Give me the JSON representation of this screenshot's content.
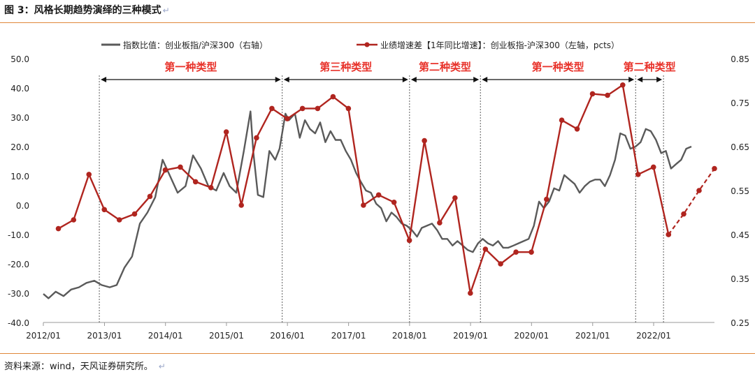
{
  "figure": {
    "title": "图 3：风格长期趋势演绎的三种模式",
    "return_mark": "↵",
    "source": "资料来源：wind，天风证券研究所。"
  },
  "colors": {
    "index_line": "#5a5a5a",
    "growth_line": "#b0251f",
    "annotation": "#e8322a",
    "rule": "#e0873a"
  },
  "chart_data": {
    "type": "line",
    "legend": {
      "position": "top",
      "entries": [
        {
          "name": "指数比值：创业板指/沪深300（右轴）",
          "series": "index"
        },
        {
          "name": "业绩增速差【1年同比增速】：创业板指-沪深300（左轴，pcts）",
          "series": "growth"
        }
      ]
    },
    "x_axis": {
      "type": "date",
      "range": [
        "2012-01-01",
        "2022-12-31"
      ],
      "tick_labels": [
        "2012/01",
        "2013/01",
        "2014/01",
        "2015/01",
        "2016/01",
        "2017/01",
        "2018/01",
        "2019/01",
        "2020/01",
        "2021/01",
        "2022/01"
      ],
      "tick_dates": [
        "2012-01-01",
        "2013-01-01",
        "2014-01-01",
        "2015-01-01",
        "2016-01-01",
        "2017-01-01",
        "2018-01-01",
        "2019-01-01",
        "2020-01-01",
        "2021-01-01",
        "2022-01-01"
      ]
    },
    "y_left": {
      "range": [
        -40,
        50
      ],
      "ticks": [
        "50.0",
        "40.0",
        "30.0",
        "20.0",
        "10.0",
        "0.0",
        "-10.0",
        "-20.0",
        "-30.0",
        "-40.0"
      ],
      "tick_values": [
        50,
        40,
        30,
        20,
        10,
        0,
        -10,
        -20,
        -30,
        -40
      ]
    },
    "y_right": {
      "range": [
        0.25,
        0.85
      ],
      "ticks": [
        "0.85",
        "0.75",
        "0.65",
        "0.55",
        "0.45",
        "0.35",
        "0.25"
      ],
      "tick_values": [
        0.85,
        0.75,
        0.65,
        0.55,
        0.45,
        0.35,
        0.25
      ]
    },
    "grid": false,
    "series": [
      {
        "id": "index",
        "axis": "right",
        "style": "line",
        "x": [
          "2012-01-01",
          "2012-02-01",
          "2012-03-15",
          "2012-05-01",
          "2012-06-15",
          "2012-08-01",
          "2012-09-15",
          "2012-11-01",
          "2012-12-15",
          "2013-02-01",
          "2013-03-15",
          "2013-05-01",
          "2013-06-15",
          "2013-08-01",
          "2013-09-15",
          "2013-11-01",
          "2013-12-15",
          "2014-02-01",
          "2014-03-15",
          "2014-05-01",
          "2014-06-15",
          "2014-08-01",
          "2014-09-15",
          "2014-11-01",
          "2014-12-15",
          "2015-01-20",
          "2015-03-01",
          "2015-04-15",
          "2015-05-25",
          "2015-06-10",
          "2015-07-08",
          "2015-08-10",
          "2015-09-15",
          "2015-10-20",
          "2015-11-15",
          "2015-12-20",
          "2016-01-10",
          "2016-02-15",
          "2016-03-15",
          "2016-04-15",
          "2016-05-15",
          "2016-06-15",
          "2016-07-15",
          "2016-08-15",
          "2016-09-15",
          "2016-10-15",
          "2016-11-15",
          "2016-12-15",
          "2017-01-15",
          "2017-02-15",
          "2017-03-15",
          "2017-04-15",
          "2017-05-15",
          "2017-06-15",
          "2017-07-15",
          "2017-08-15",
          "2017-09-15",
          "2017-10-15",
          "2017-11-15",
          "2017-12-15",
          "2018-01-15",
          "2018-02-15",
          "2018-03-15",
          "2018-04-15",
          "2018-05-15",
          "2018-06-15",
          "2018-07-15",
          "2018-08-15",
          "2018-09-15",
          "2018-10-15",
          "2018-11-15",
          "2018-12-15",
          "2019-01-15",
          "2019-02-15",
          "2019-03-15",
          "2019-04-15",
          "2019-05-15",
          "2019-06-15",
          "2019-07-15",
          "2019-08-15",
          "2019-09-15",
          "2019-10-15",
          "2019-11-15",
          "2019-12-15",
          "2020-01-15",
          "2020-02-15",
          "2020-03-15",
          "2020-04-15",
          "2020-05-15",
          "2020-06-15",
          "2020-07-15",
          "2020-08-15",
          "2020-09-15",
          "2020-10-15",
          "2020-11-15",
          "2020-12-15",
          "2021-01-15",
          "2021-02-15",
          "2021-03-15",
          "2021-04-15",
          "2021-05-15",
          "2021-06-15",
          "2021-07-15",
          "2021-08-15",
          "2021-09-15",
          "2021-10-15",
          "2021-11-15",
          "2021-12-15",
          "2022-01-15",
          "2022-02-15",
          "2022-03-15",
          "2022-04-15",
          "2022-05-15",
          "2022-06-15",
          "2022-07-15",
          "2022-08-15"
        ],
        "values": [
          0.315,
          0.305,
          0.32,
          0.31,
          0.325,
          0.33,
          0.34,
          0.345,
          0.335,
          0.33,
          0.335,
          0.375,
          0.4,
          0.475,
          0.5,
          0.535,
          0.62,
          0.58,
          0.545,
          0.56,
          0.63,
          0.6,
          0.56,
          0.55,
          0.59,
          0.56,
          0.545,
          0.64,
          0.73,
          0.64,
          0.54,
          0.535,
          0.64,
          0.62,
          0.645,
          0.725,
          0.71,
          0.725,
          0.67,
          0.71,
          0.69,
          0.68,
          0.705,
          0.66,
          0.685,
          0.665,
          0.665,
          0.64,
          0.62,
          0.59,
          0.57,
          0.55,
          0.545,
          0.52,
          0.51,
          0.48,
          0.5,
          0.49,
          0.475,
          0.47,
          0.46,
          0.445,
          0.465,
          0.47,
          0.475,
          0.46,
          0.44,
          0.44,
          0.425,
          0.435,
          0.425,
          0.415,
          0.41,
          0.43,
          0.44,
          0.43,
          0.425,
          0.435,
          0.42,
          0.42,
          0.425,
          0.43,
          0.435,
          0.44,
          0.47,
          0.525,
          0.51,
          0.525,
          0.555,
          0.55,
          0.585,
          0.575,
          0.565,
          0.545,
          0.56,
          0.57,
          0.575,
          0.575,
          0.56,
          0.585,
          0.62,
          0.68,
          0.675,
          0.645,
          0.65,
          0.66,
          0.69,
          0.685,
          0.665,
          0.635,
          0.64,
          0.6,
          0.61,
          0.62,
          0.645,
          0.65
        ]
      },
      {
        "id": "growth",
        "axis": "left",
        "style": "line-markers",
        "x": [
          "2012-03-31",
          "2012-06-30",
          "2012-09-30",
          "2012-12-31",
          "2013-03-31",
          "2013-06-30",
          "2013-09-30",
          "2013-12-31",
          "2014-03-31",
          "2014-06-30",
          "2014-09-30",
          "2014-12-31",
          "2015-03-31",
          "2015-06-30",
          "2015-09-30",
          "2015-12-31",
          "2016-03-31",
          "2016-06-30",
          "2016-09-30",
          "2016-12-31",
          "2017-03-31",
          "2017-06-30",
          "2017-09-30",
          "2017-12-31",
          "2018-03-31",
          "2018-06-30",
          "2018-09-30",
          "2018-12-31",
          "2019-03-31",
          "2019-06-30",
          "2019-09-30",
          "2019-12-31",
          "2020-03-31",
          "2020-06-30",
          "2020-09-30",
          "2020-12-31",
          "2021-03-31",
          "2021-06-30",
          "2021-09-30",
          "2021-12-31",
          "2022-03-31"
        ],
        "values": [
          -8.0,
          -5.0,
          10.5,
          -1.5,
          -5.0,
          -3.0,
          3.0,
          12.0,
          13.0,
          8.0,
          6.0,
          25.0,
          0.0,
          23.0,
          33.0,
          29.5,
          33.0,
          33.0,
          37.0,
          33.0,
          0.0,
          3.5,
          1.0,
          -12.0,
          22.0,
          -6.0,
          2.5,
          -30.0,
          -15.0,
          -20.0,
          -16.0,
          -16.0,
          2.0,
          29.0,
          26.0,
          38.0,
          37.5,
          41.0,
          10.5,
          13.0,
          -10.0
        ]
      },
      {
        "id": "growth_forecast",
        "axis": "left",
        "style": "dashed-markers",
        "x": [
          "2022-03-31",
          "2022-06-30",
          "2022-09-30",
          "2022-12-31"
        ],
        "values": [
          -10.0,
          -3.0,
          5.0,
          12.5
        ]
      }
    ],
    "annotations": {
      "labels": [
        {
          "text": "第一种类型",
          "start": "2012-12-01",
          "end": "2015-12-01"
        },
        {
          "text": "第三种类型",
          "start": "2015-12-01",
          "end": "2018-01-01"
        },
        {
          "text": "第二种类型",
          "start": "2018-01-01",
          "end": "2019-03-01"
        },
        {
          "text": "第一种类型",
          "start": "2019-03-01",
          "end": "2021-09-15"
        },
        {
          "text": "第二种类型",
          "start": "2021-09-15",
          "end": "2022-03-01"
        }
      ],
      "dividers": [
        "2012-12-01",
        "2015-12-01",
        "2018-01-01",
        "2019-03-01",
        "2021-09-15",
        "2022-03-01"
      ]
    }
  }
}
